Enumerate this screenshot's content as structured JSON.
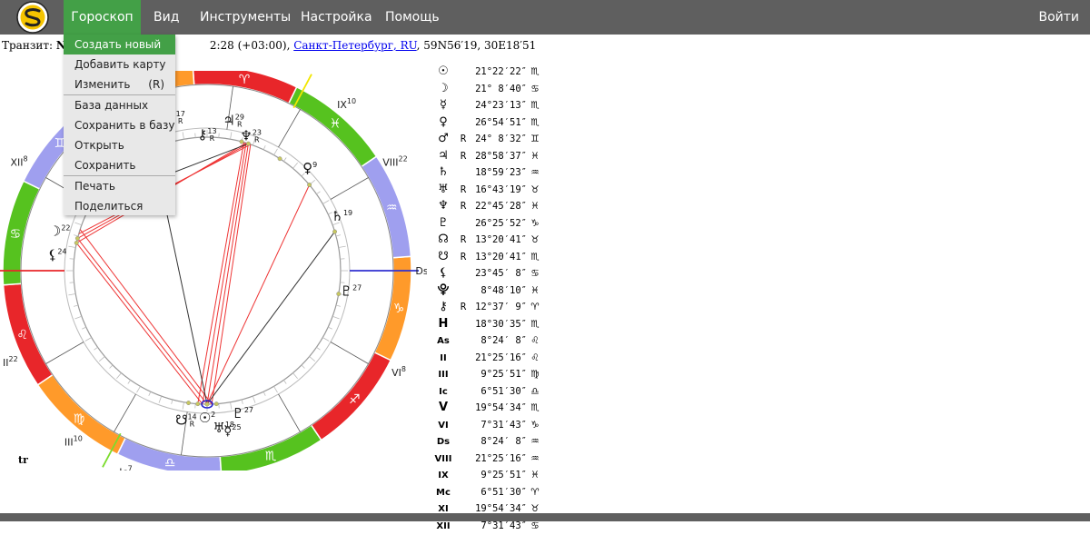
{
  "menu": {
    "items": [
      {
        "label": "Гороскоп",
        "active": true
      },
      {
        "label": "Вид"
      },
      {
        "label": "Инструменты"
      },
      {
        "label": "Настройка"
      },
      {
        "label": "Помощь"
      }
    ],
    "login": "Войти"
  },
  "dropdown": {
    "items": [
      "Создать новый",
      "Добавить карту",
      "Изменить",
      "База данных",
      "Сохранить в базу",
      "Открыть",
      "Сохранить",
      "Печать",
      "Поделиться"
    ],
    "edit_shortcut": "(R)"
  },
  "transit": {
    "prefix": "Транзит: ",
    "name_visible": "New",
    "time_visible": "2:28 (+03:00), ",
    "city": "Санкт-Петербург, RU",
    "coords": ", 59N56′19, 30E18′51"
  },
  "chart": {
    "corner_label": "tr",
    "zodiac_colors": {
      "fire": "#e8262a",
      "earth": "#ff9a2a",
      "air": "#9f9fef",
      "water": "#56c21f"
    },
    "house_labels": [
      {
        "t": "As",
        "n": "9"
      },
      {
        "t": "II",
        "n": "22"
      },
      {
        "t": "III",
        "n": "10"
      },
      {
        "t": "Ic",
        "n": "7"
      },
      {
        "t": "V",
        "n": "20"
      },
      {
        "t": "VI",
        "n": "8"
      },
      {
        "t": "Ds",
        "n": "9"
      },
      {
        "t": "VIII",
        "n": "22"
      },
      {
        "t": "IX",
        "n": "10"
      },
      {
        "t": "Mc",
        "n": "7"
      },
      {
        "t": "XII",
        "n": "8"
      }
    ],
    "planet_labels": [
      {
        "s": "♅",
        "n": "17",
        "r": "R"
      },
      {
        "s": "☊",
        "n": "14",
        "r": "R"
      },
      {
        "s": "⚷",
        "n": "13",
        "r": "R"
      },
      {
        "s": "♃",
        "n": "29",
        "r": "R"
      },
      {
        "s": "♆",
        "n": "23",
        "r": "R"
      },
      {
        "s": "♀",
        "n": "9"
      },
      {
        "s": "♄",
        "n": "19"
      },
      {
        "s": "♇",
        "n": "27"
      },
      {
        "s": "⚸",
        "n": "24"
      },
      {
        "s": "☽",
        "n": "22"
      },
      {
        "s": "☋",
        "n": "14",
        "r": "R"
      },
      {
        "s": "☉",
        "n": "2"
      },
      {
        "s": "♇",
        "n": "27"
      },
      {
        "s": "♅",
        "n": "18"
      },
      {
        "s": "☿",
        "n": "25"
      }
    ]
  },
  "positions": [
    {
      "sym": "☉",
      "r": "",
      "val": "21°22′22″",
      "sign": "♏"
    },
    {
      "sym": "☽",
      "r": "",
      "val": "21° 8′40″",
      "sign": "♋"
    },
    {
      "sym": "☿",
      "r": "",
      "val": "24°23′13″",
      "sign": "♏"
    },
    {
      "sym": "♀",
      "r": "",
      "val": "26°54′51″",
      "sign": "♏"
    },
    {
      "sym": "♂",
      "r": "R",
      "val": "24° 8′32″",
      "sign": "♊"
    },
    {
      "sym": "♃",
      "r": "R",
      "val": "28°58′37″",
      "sign": "♓"
    },
    {
      "sym": "♄",
      "r": "",
      "val": "18°59′23″",
      "sign": "♒"
    },
    {
      "sym": "♅",
      "r": "R",
      "val": "16°43′19″",
      "sign": "♉"
    },
    {
      "sym": "♆",
      "r": "R",
      "val": "22°45′28″",
      "sign": "♓"
    },
    {
      "sym": "♇",
      "r": "",
      "val": "26°25′52″",
      "sign": "♑"
    },
    {
      "sym": "☊",
      "r": "R",
      "val": "13°20′41″",
      "sign": "♉"
    },
    {
      "sym": "☋",
      "r": "R",
      "val": "13°20′41″",
      "sign": "♏"
    },
    {
      "sym": "⚸",
      "r": "",
      "val": "23°45′ 8″",
      "sign": "♋"
    },
    {
      "sym": "⯓",
      "r": "",
      "val": "8°48′10″",
      "sign": "♓"
    },
    {
      "sym": "⚷",
      "r": "R",
      "val": "12°37′ 9″",
      "sign": "♈"
    },
    {
      "sym": "H",
      "r": "",
      "val": "18°30′35″",
      "sign": "♏"
    },
    {
      "sym": "As",
      "r": "",
      "val": "8°24′ 8″",
      "sign": "♌"
    },
    {
      "sym": "II",
      "r": "",
      "val": "21°25′16″",
      "sign": "♌"
    },
    {
      "sym": "III",
      "r": "",
      "val": "9°25′51″",
      "sign": "♍"
    },
    {
      "sym": "Ic",
      "r": "",
      "val": "6°51′30″",
      "sign": "♎"
    },
    {
      "sym": "V",
      "r": "",
      "val": "19°54′34″",
      "sign": "♏"
    },
    {
      "sym": "VI",
      "r": "",
      "val": "7°31′43″",
      "sign": "♑"
    },
    {
      "sym": "Ds",
      "r": "",
      "val": "8°24′ 8″",
      "sign": "♒"
    },
    {
      "sym": "VIII",
      "r": "",
      "val": "21°25′16″",
      "sign": "♒"
    },
    {
      "sym": "IX",
      "r": "",
      "val": "9°25′51″",
      "sign": "♓"
    },
    {
      "sym": "Mc",
      "r": "",
      "val": "6°51′30″",
      "sign": "♈"
    },
    {
      "sym": "XI",
      "r": "",
      "val": "19°54′34″",
      "sign": "♉"
    },
    {
      "sym": "XII",
      "r": "",
      "val": "7°31′43″",
      "sign": "♋"
    }
  ]
}
